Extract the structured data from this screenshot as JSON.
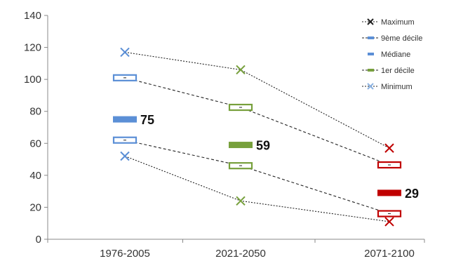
{
  "chart_data": {
    "type": "line",
    "categories": [
      "1976-2005",
      "2021-2050",
      "2071-2100"
    ],
    "ylim": [
      0,
      140
    ],
    "yticks": [
      0,
      20,
      40,
      60,
      80,
      100,
      120,
      140
    ],
    "grid": false,
    "legend_position": "top-right",
    "category_colors": [
      "#5b8fd6",
      "#77a03c",
      "#c00000"
    ],
    "series": [
      {
        "name": "Maximum",
        "values": [
          117,
          106,
          57
        ]
      },
      {
        "name": "9ème décile",
        "values": [
          101,
          82.5,
          46.5
        ]
      },
      {
        "name": "Médiane",
        "values": [
          75,
          59,
          29
        ]
      },
      {
        "name": "1er décile",
        "values": [
          62,
          46,
          16
        ]
      },
      {
        "name": "Minimum",
        "values": [
          52,
          24,
          11
        ]
      }
    ],
    "median_labels": [
      "75",
      "59",
      "29"
    ]
  }
}
